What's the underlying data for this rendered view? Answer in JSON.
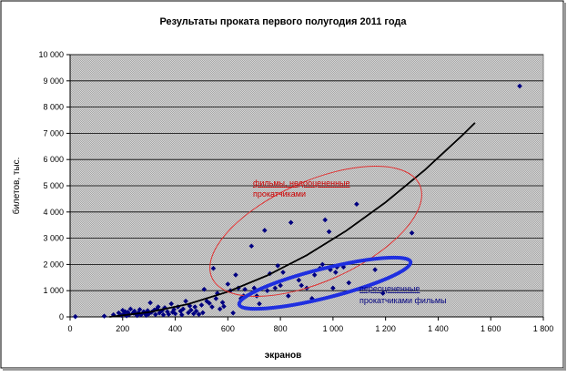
{
  "chart_data": {
    "type": "scatter",
    "title": "Результаты проката первого полугодия 2011 года",
    "xlabel": "экранов",
    "ylabel": "билетов, тыс.",
    "xlim": [
      0,
      1800
    ],
    "ylim": [
      0,
      10000
    ],
    "xticks": [
      {
        "value": 0,
        "label": "0"
      },
      {
        "value": 200,
        "label": "200"
      },
      {
        "value": 400,
        "label": "400"
      },
      {
        "value": 600,
        "label": "600"
      },
      {
        "value": 800,
        "label": "800"
      },
      {
        "value": 1000,
        "label": "1 000"
      },
      {
        "value": 1200,
        "label": "1 200"
      },
      {
        "value": 1400,
        "label": "1 400"
      },
      {
        "value": 1600,
        "label": "1 600"
      },
      {
        "value": 1800,
        "label": "1 800"
      }
    ],
    "yticks": [
      {
        "value": 0,
        "label": "0"
      },
      {
        "value": 1000,
        "label": "1 000"
      },
      {
        "value": 2000,
        "label": "2 000"
      },
      {
        "value": 3000,
        "label": "3 000"
      },
      {
        "value": 4000,
        "label": "4 000"
      },
      {
        "value": 5000,
        "label": "5 000"
      },
      {
        "value": 6000,
        "label": "6 000"
      },
      {
        "value": 7000,
        "label": "7 000"
      },
      {
        "value": 8000,
        "label": "8 000"
      },
      {
        "value": 9000,
        "label": "9 000"
      },
      {
        "value": 10000,
        "label": "10 000"
      }
    ],
    "grid": true,
    "plot_background": "#c0c0c0",
    "marker_color": "#000080",
    "points": [
      [
        20,
        10
      ],
      [
        130,
        30
      ],
      [
        165,
        80
      ],
      [
        185,
        150
      ],
      [
        195,
        60
      ],
      [
        200,
        250
      ],
      [
        205,
        120
      ],
      [
        210,
        200
      ],
      [
        215,
        40
      ],
      [
        220,
        180
      ],
      [
        225,
        90
      ],
      [
        230,
        300
      ],
      [
        240,
        150
      ],
      [
        245,
        220
      ],
      [
        250,
        100
      ],
      [
        255,
        50
      ],
      [
        260,
        160
      ],
      [
        265,
        280
      ],
      [
        270,
        80
      ],
      [
        280,
        200
      ],
      [
        285,
        130
      ],
      [
        290,
        60
      ],
      [
        295,
        240
      ],
      [
        300,
        120
      ],
      [
        305,
        540
      ],
      [
        310,
        180
      ],
      [
        320,
        260
      ],
      [
        325,
        90
      ],
      [
        330,
        300
      ],
      [
        335,
        380
      ],
      [
        340,
        150
      ],
      [
        350,
        240
      ],
      [
        355,
        80
      ],
      [
        360,
        350
      ],
      [
        370,
        200
      ],
      [
        375,
        100
      ],
      [
        385,
        500
      ],
      [
        390,
        180
      ],
      [
        395,
        280
      ],
      [
        400,
        120
      ],
      [
        410,
        380
      ],
      [
        420,
        220
      ],
      [
        425,
        80
      ],
      [
        430,
        300
      ],
      [
        440,
        600
      ],
      [
        450,
        160
      ],
      [
        455,
        420
      ],
      [
        460,
        260
      ],
      [
        470,
        120
      ],
      [
        475,
        380
      ],
      [
        480,
        220
      ],
      [
        490,
        100
      ],
      [
        500,
        450
      ],
      [
        505,
        160
      ],
      [
        510,
        1050
      ],
      [
        520,
        600
      ],
      [
        530,
        520
      ],
      [
        540,
        380
      ],
      [
        545,
        1850
      ],
      [
        555,
        700
      ],
      [
        560,
        900
      ],
      [
        570,
        300
      ],
      [
        580,
        550
      ],
      [
        585,
        400
      ],
      [
        600,
        1250
      ],
      [
        610,
        1000
      ],
      [
        620,
        150
      ],
      [
        630,
        1600
      ],
      [
        640,
        1100
      ],
      [
        650,
        700
      ],
      [
        660,
        800
      ],
      [
        665,
        1050
      ],
      [
        690,
        2700
      ],
      [
        700,
        1100
      ],
      [
        710,
        800
      ],
      [
        720,
        500
      ],
      [
        740,
        3300
      ],
      [
        750,
        1000
      ],
      [
        760,
        1650
      ],
      [
        780,
        1100
      ],
      [
        790,
        1950
      ],
      [
        800,
        1200
      ],
      [
        810,
        1700
      ],
      [
        830,
        800
      ],
      [
        840,
        3600
      ],
      [
        870,
        1400
      ],
      [
        880,
        1200
      ],
      [
        900,
        1100
      ],
      [
        920,
        700
      ],
      [
        930,
        1600
      ],
      [
        950,
        1850
      ],
      [
        960,
        2000
      ],
      [
        970,
        3700
      ],
      [
        985,
        3250
      ],
      [
        990,
        1800
      ],
      [
        1000,
        1100
      ],
      [
        1010,
        1700
      ],
      [
        1015,
        1900
      ],
      [
        1040,
        1900
      ],
      [
        1060,
        1300
      ],
      [
        1090,
        4300
      ],
      [
        1160,
        1800
      ],
      [
        1190,
        900
      ],
      [
        1300,
        3200
      ],
      [
        1710,
        8800
      ]
    ],
    "trendline": [
      [
        150,
        0
      ],
      [
        300,
        180
      ],
      [
        450,
        490
      ],
      [
        600,
        960
      ],
      [
        750,
        1580
      ],
      [
        900,
        2350
      ],
      [
        1050,
        3280
      ],
      [
        1200,
        4370
      ],
      [
        1350,
        5610
      ],
      [
        1500,
        7000
      ],
      [
        1540,
        7400
      ]
    ],
    "annotations": [
      {
        "text_lines": [
          "фильмы, недооцененные",
          "прокатчиками"
        ],
        "color": "#cc0000"
      },
      {
        "text_lines": [
          "переоцененные",
          "прокатчиками фильмы"
        ],
        "color": "#000080"
      }
    ]
  }
}
